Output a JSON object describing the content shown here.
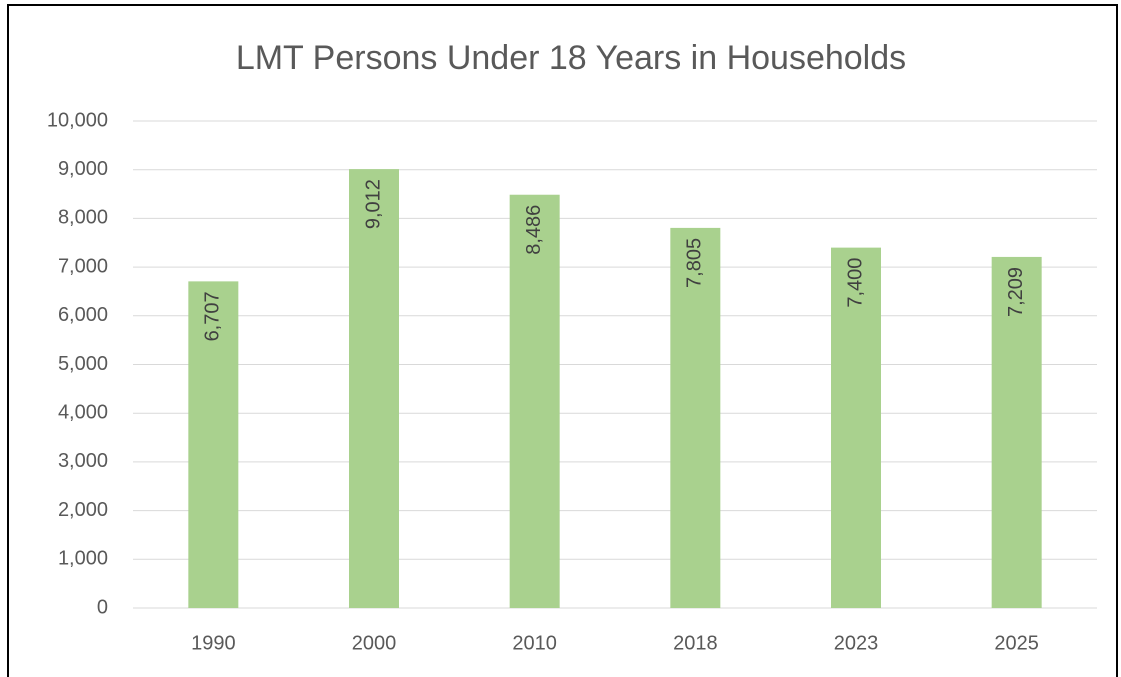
{
  "chart_data": {
    "type": "bar",
    "title": "LMT Persons Under 18 Years in Households",
    "categories": [
      "1990",
      "2000",
      "2010",
      "2018",
      "2023",
      "2025"
    ],
    "values": [
      6707,
      9012,
      8486,
      7805,
      7400,
      7209
    ],
    "value_labels": [
      "6,707",
      "9,012",
      "8,486",
      "7,805",
      "7,400",
      "7,209"
    ],
    "color": "#a9d18e",
    "ylim": [
      0,
      10000
    ],
    "yticks": [
      0,
      {
        "value": 1000,
        "label": "1,000"
      },
      {
        "value": 2000,
        "label": "2,000"
      },
      {
        "value": 3000,
        "label": "3,000"
      },
      {
        "value": 4000,
        "label": "4,000"
      },
      {
        "value": 5000,
        "label": "5,000"
      },
      {
        "value": 6000,
        "label": "6,000"
      },
      {
        "value": 7000,
        "label": "7,000"
      },
      {
        "value": 8000,
        "label": "8,000"
      },
      {
        "value": 9000,
        "label": "9,000"
      },
      {
        "value": 10000,
        "label": "10,000"
      }
    ],
    "grid": true
  }
}
